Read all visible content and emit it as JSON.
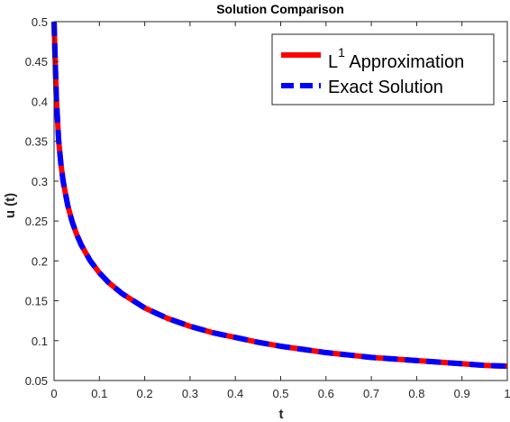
{
  "chart_data": {
    "type": "line",
    "title": "Solution Comparison",
    "xlabel": "t",
    "ylabel": "u (t)",
    "xlim": [
      0,
      1
    ],
    "ylim": [
      0.05,
      0.5
    ],
    "xticks": [
      0,
      0.1,
      0.2,
      0.3,
      0.4,
      0.5,
      0.6,
      0.7,
      0.8,
      0.9,
      1
    ],
    "xtick_labels": [
      "0",
      "0.1",
      "0.2",
      "0.3",
      "0.4",
      "0.5",
      "0.6",
      "0.7",
      "0.8",
      "0.9",
      "1"
    ],
    "yticks": [
      0.05,
      0.1,
      0.15,
      0.2,
      0.25,
      0.3,
      0.35,
      0.4,
      0.45,
      0.5
    ],
    "ytick_labels": [
      "0.05",
      "0.1",
      "0.15",
      "0.2",
      "0.25",
      "0.3",
      "0.35",
      "0.4",
      "0.45",
      "0.5"
    ],
    "grid": false,
    "legend_position": "top-right",
    "series": [
      {
        "name_main": "L",
        "name_sup": "1",
        "name_rest": " Approximation",
        "color": "#ff0000",
        "style": "solid",
        "x": [
          0,
          0.002,
          0.005,
          0.01,
          0.015,
          0.02,
          0.03,
          0.04,
          0.05,
          0.06,
          0.08,
          0.1,
          0.12,
          0.15,
          0.2,
          0.25,
          0.3,
          0.35,
          0.4,
          0.45,
          0.5,
          0.55,
          0.6,
          0.65,
          0.7,
          0.75,
          0.8,
          0.85,
          0.9,
          0.95,
          1
        ],
        "y": [
          0.5,
          0.46,
          0.405,
          0.352,
          0.322,
          0.3,
          0.27,
          0.249,
          0.233,
          0.22,
          0.2,
          0.185,
          0.173,
          0.159,
          0.141,
          0.128,
          0.118,
          0.11,
          0.104,
          0.098,
          0.093,
          0.089,
          0.085,
          0.082,
          0.079,
          0.077,
          0.075,
          0.073,
          0.071,
          0.069,
          0.068
        ]
      },
      {
        "name_main": "Exact Solution",
        "color": "#0000ff",
        "style": "dashed",
        "x": [
          0,
          0.002,
          0.005,
          0.01,
          0.015,
          0.02,
          0.03,
          0.04,
          0.05,
          0.06,
          0.08,
          0.1,
          0.12,
          0.15,
          0.2,
          0.25,
          0.3,
          0.35,
          0.4,
          0.45,
          0.5,
          0.55,
          0.6,
          0.65,
          0.7,
          0.75,
          0.8,
          0.85,
          0.9,
          0.95,
          1
        ],
        "y": [
          0.5,
          0.46,
          0.405,
          0.352,
          0.322,
          0.3,
          0.27,
          0.249,
          0.233,
          0.22,
          0.2,
          0.185,
          0.173,
          0.159,
          0.141,
          0.128,
          0.118,
          0.11,
          0.104,
          0.098,
          0.093,
          0.089,
          0.085,
          0.082,
          0.079,
          0.077,
          0.075,
          0.073,
          0.071,
          0.069,
          0.068
        ]
      }
    ]
  }
}
